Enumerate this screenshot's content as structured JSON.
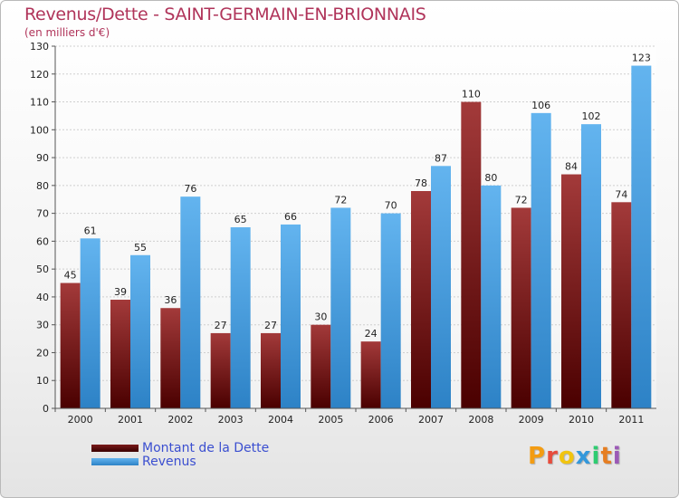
{
  "header": {
    "title": "Revenus/Dette - SAINT-GERMAIN-EN-BRIONNAIS",
    "subtitle": "(en milliers d'€)"
  },
  "legend": {
    "debt_label": "Montant de la Dette",
    "revenue_label": "Revenus"
  },
  "logo": {
    "text": "Proxiti",
    "letter_colors": [
      "#f39c12",
      "#e74c3c",
      "#f1c40f",
      "#3498db",
      "#2ecc71",
      "#e67e22",
      "#9b59b6"
    ]
  },
  "colors": {
    "debt_top": "#a33a3a",
    "debt_bottom": "#4a0000",
    "revenue_top": "#63b4ef",
    "revenue_bottom": "#2d82c6",
    "title": "#b0345a",
    "legend_text": "#3b4fd0"
  },
  "chart_data": {
    "type": "bar",
    "title": "Revenus/Dette - SAINT-GERMAIN-EN-BRIONNAIS",
    "subtitle": "(en milliers d'€)",
    "categories": [
      "2000",
      "2001",
      "2002",
      "2003",
      "2004",
      "2005",
      "2006",
      "2007",
      "2008",
      "2009",
      "2010",
      "2011"
    ],
    "series": [
      {
        "name": "Montant de la Dette",
        "values": [
          45,
          39,
          36,
          27,
          27,
          30,
          24,
          78,
          110,
          72,
          84,
          74
        ]
      },
      {
        "name": "Revenus",
        "values": [
          61,
          55,
          76,
          65,
          66,
          72,
          70,
          87,
          80,
          106,
          102,
          123
        ]
      }
    ],
    "ylim": [
      0,
      130
    ],
    "yticks": [
      0,
      10,
      20,
      30,
      40,
      50,
      60,
      70,
      80,
      90,
      100,
      110,
      120,
      130
    ],
    "grid": true,
    "legend_position": "bottom-left"
  }
}
